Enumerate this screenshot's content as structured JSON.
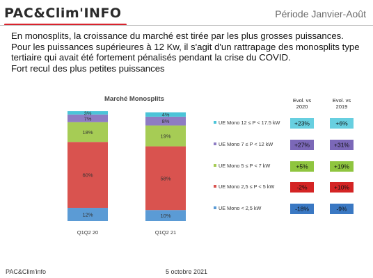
{
  "header": {
    "logo_text": "PAC&Clim'INFO",
    "period": "Période Janvier-Août"
  },
  "intro": {
    "line1": "En monosplits, la croissance du marché est tirée par les plus grosses puissances.",
    "line2": "Pour les puissances supérieures à 12 Kw, il s'agit d'un rattrapage des monosplits type tertiaire qui avait été fortement pénalisés pendant la crise du COVID.",
    "line3": "Fort recul des plus petites puissances"
  },
  "footer": {
    "source": "PAC&Clim'info",
    "date": "5 octobre 2021"
  },
  "colors": {
    "brand_red": "#d9232d",
    "segment_colors": [
      "#5b9bd5",
      "#d9534f",
      "#a6cc55",
      "#8e7cc3",
      "#4bc4d8"
    ]
  },
  "chart_data": {
    "type": "bar",
    "stacked": true,
    "title": "Marché Monosplits",
    "categories": [
      "Q1Q2 20",
      "Q1Q2 21"
    ],
    "series": [
      {
        "name": "UE Mono < 2,5 kW",
        "values": [
          12,
          10
        ],
        "labels": [
          "12%",
          "10%"
        ],
        "color": "#5b9bd5",
        "evol_2020": "-18%",
        "evol_2019": "-9%",
        "evol_2020_color": "#3a78c3",
        "evol_2019_color": "#3a78c3"
      },
      {
        "name": "UE Mono 2,5 ≤ P < 5 kW",
        "values": [
          60,
          58
        ],
        "labels": [
          "60%",
          "58%"
        ],
        "color": "#d9534f",
        "evol_2020": "-2%",
        "evol_2019": "+10%",
        "evol_2020_color": "#d42424",
        "evol_2019_color": "#d42424"
      },
      {
        "name": "UE Mono 5 ≤ P < 7 kW",
        "values": [
          18,
          19
        ],
        "labels": [
          "18%",
          "19%"
        ],
        "color": "#a6cc55",
        "evol_2020": "+5%",
        "evol_2019": "+19%",
        "evol_2020_color": "#8fc53f",
        "evol_2019_color": "#8fc53f"
      },
      {
        "name": "UE Mono 7 ≤ P < 12 kW",
        "values": [
          7,
          8
        ],
        "labels": [
          "7%",
          "8%"
        ],
        "color": "#8e7cc3",
        "evol_2020": "+27%",
        "evol_2019": "+31%",
        "evol_2020_color": "#7b68b8",
        "evol_2019_color": "#7b68b8"
      },
      {
        "name": "UE Mono 12 ≤ P < 17.5 kW",
        "values": [
          3,
          4
        ],
        "labels": [
          "3%",
          "4%"
        ],
        "color": "#4bc4d8",
        "evol_2020": "+23%",
        "evol_2019": "+6%",
        "evol_2020_color": "#67cfe0",
        "evol_2019_color": "#67cfe0"
      }
    ],
    "ylim": [
      0,
      100
    ],
    "xlabel": "",
    "ylabel": "",
    "legend_position": "right",
    "evol_headers": [
      "Evol. vs 2020",
      "Evol. vs 2019"
    ]
  }
}
